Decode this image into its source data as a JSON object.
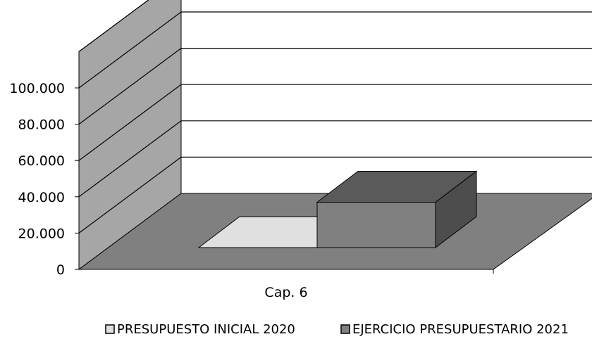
{
  "chart_data": {
    "type": "bar",
    "style": "3d-clustered-column",
    "categories": [
      "Cap. 6"
    ],
    "series": [
      {
        "name": "PRESUPUESTO INICIAL 2020",
        "values": [
          0
        ],
        "color": "#e0e0e0"
      },
      {
        "name": "EJERCICIO PRESUPUESTARIO 2021",
        "values": [
          25000
        ],
        "color": "#808080"
      }
    ],
    "y_ticks": [
      "0",
      "20.000",
      "40.000",
      "60.000",
      "80.000",
      "100.000"
    ],
    "ylim": [
      0,
      100000
    ],
    "grid": true,
    "legend_position": "bottom",
    "colors": {
      "back_wall": "#ffffff",
      "side_wall": "#a6a6a6",
      "floor": "#808080",
      "bar_top": "#5a5a5a",
      "bar_side": "#4d4d4d"
    }
  }
}
